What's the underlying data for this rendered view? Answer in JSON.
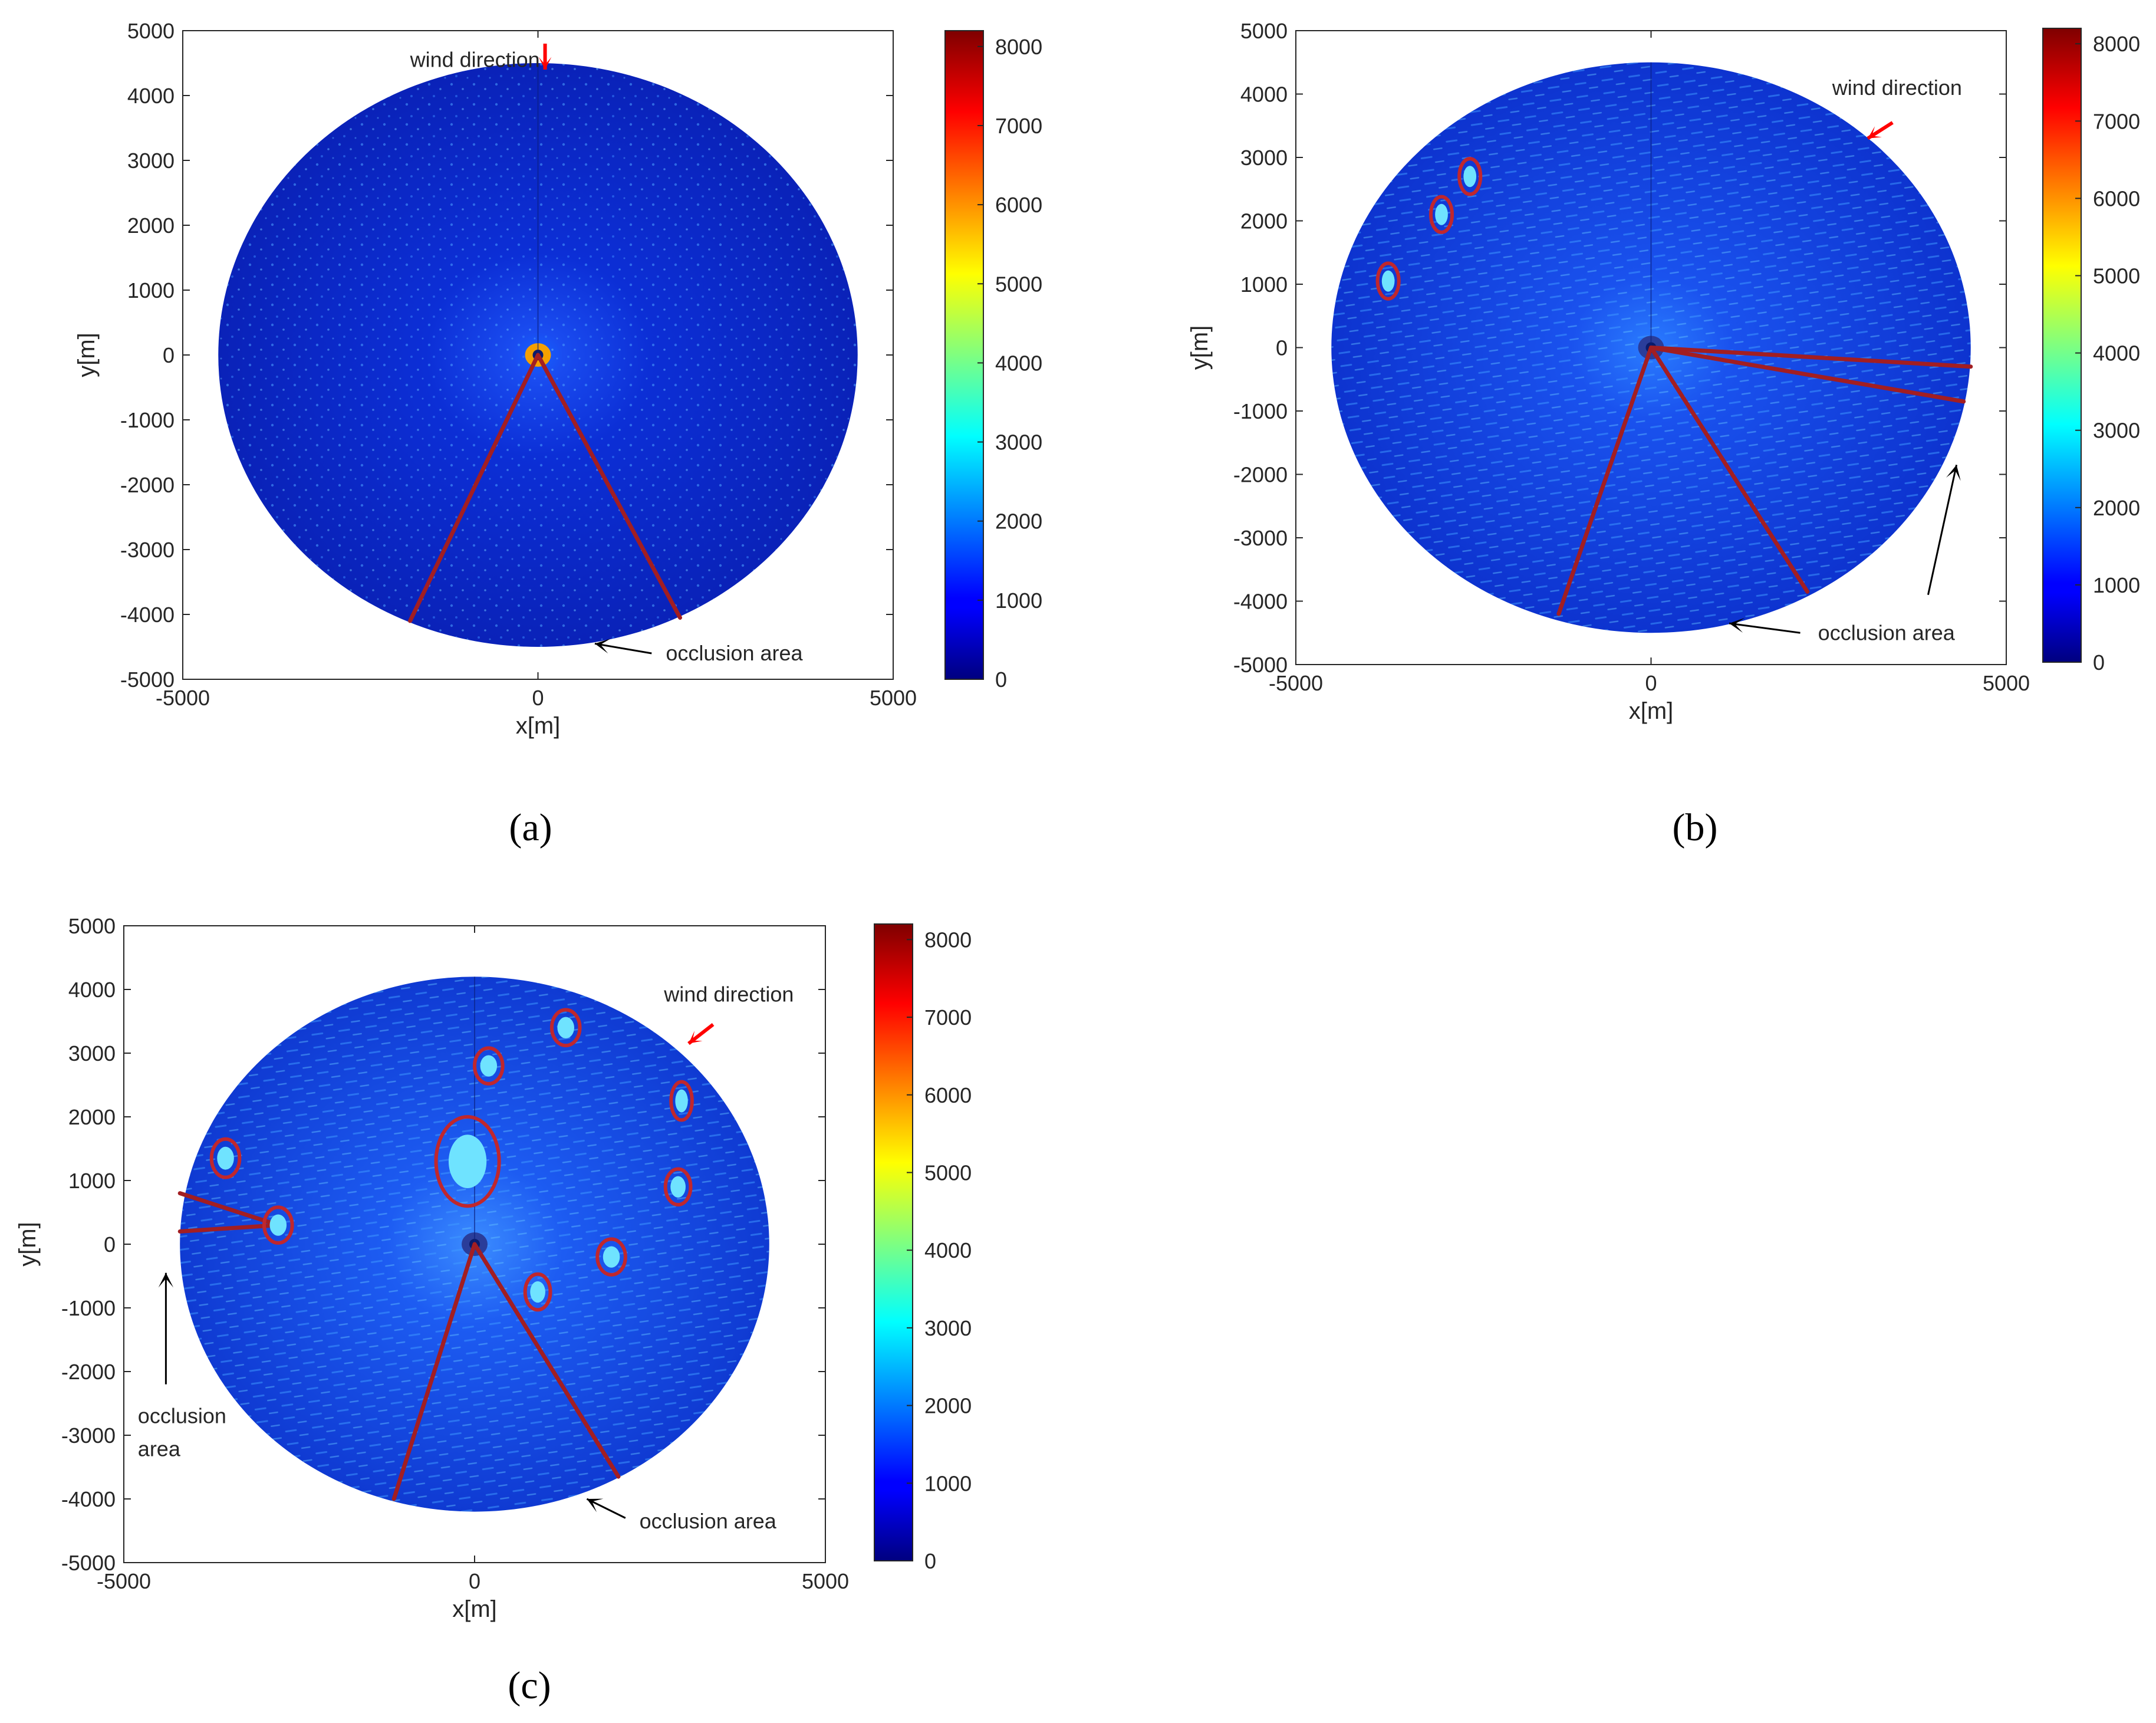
{
  "chart_data": [
    {
      "panel_label": "(a)",
      "type": "heatmap",
      "title": "",
      "xlabel": "x[m]",
      "ylabel": "y[m]",
      "xlim": [
        -5000,
        5000
      ],
      "ylim": [
        -5000,
        5000
      ],
      "xticks": [
        "-5000",
        "0",
        "5000"
      ],
      "yticks": [
        "5000",
        "4000",
        "3000",
        "2000",
        "1000",
        "0",
        "-1000",
        "-2000",
        "-3000",
        "-4000",
        "-5000"
      ],
      "radar_radius_m": 4500,
      "colorbar": {
        "min": 0,
        "max": 8200,
        "colormap": "jet",
        "ticks": [
          "8000",
          "7000",
          "6000",
          "5000",
          "4000",
          "3000",
          "2000",
          "1000",
          "0"
        ]
      },
      "occlusion_sectors": [
        {
          "from": [
            0,
            0
          ],
          "to": [
            [
              -1800,
              -4100
            ],
            [
              2000,
              -4050
            ]
          ]
        }
      ],
      "ellipses": [],
      "annotations": [
        {
          "text": "wind direction",
          "x": -1800,
          "y": 4550,
          "arrow": {
            "color": "#ff0000",
            "from": [
              100,
              4800
            ],
            "to": [
              100,
              4400
            ]
          }
        },
        {
          "text": "occlusion area",
          "x": 1800,
          "y": -4600,
          "arrow": {
            "color": "#000000",
            "from": [
              1600,
              -4600
            ],
            "to": [
              800,
              -4450
            ]
          }
        }
      ]
    },
    {
      "panel_label": "(b)",
      "type": "heatmap",
      "title": "",
      "xlabel": "x[m]",
      "ylabel": "y[m]",
      "xlim": [
        -5000,
        5000
      ],
      "ylim": [
        -5000,
        5000
      ],
      "xticks": [
        "-5000",
        "0",
        "5000"
      ],
      "yticks": [
        "5000",
        "4000",
        "3000",
        "2000",
        "1000",
        "0",
        "-1000",
        "-2000",
        "-3000",
        "-4000",
        "-5000"
      ],
      "radar_radius_m": 4500,
      "colorbar": {
        "min": 0,
        "max": 8200,
        "colormap": "jet",
        "ticks": [
          "8000",
          "7000",
          "6000",
          "5000",
          "4000",
          "3000",
          "2000",
          "1000",
          "0"
        ]
      },
      "occlusion_sectors": [
        {
          "from": [
            0,
            0
          ],
          "to": [
            [
              -1300,
              -4200
            ],
            [
              2200,
              -3850
            ]
          ]
        },
        {
          "from": [
            0,
            0
          ],
          "to": [
            [
              4500,
              -300
            ],
            [
              4400,
              -850
            ]
          ]
        }
      ],
      "ellipses": [
        {
          "cx": -2550,
          "cy": 2700,
          "rx": 150,
          "ry": 280
        },
        {
          "cx": -2950,
          "cy": 2100,
          "rx": 150,
          "ry": 280
        },
        {
          "cx": -3700,
          "cy": 1050,
          "rx": 150,
          "ry": 280
        }
      ],
      "annotations": [
        {
          "text": "wind direction",
          "x": 2550,
          "y": 4100,
          "arrow": {
            "color": "#ff0000",
            "from": [
              3400,
              3550
            ],
            "to": [
              3050,
              3300
            ]
          }
        },
        {
          "text": "occlusion area",
          "x": 2350,
          "y": -4500,
          "arrow": {
            "color": "#000000",
            "from": [
              2100,
              -4500
            ],
            "to": [
              1100,
              -4350
            ]
          }
        },
        {
          "text": "",
          "x": 0,
          "y": 0,
          "arrow": {
            "color": "#000000",
            "from": [
              3900,
              -3900
            ],
            "to": [
              4300,
              -1850
            ]
          }
        }
      ]
    },
    {
      "panel_label": "(c)",
      "type": "heatmap",
      "title": "",
      "xlabel": "x[m]",
      "ylabel": "y[m]",
      "xlim": [
        -5000,
        5000
      ],
      "ylim": [
        -5000,
        5000
      ],
      "xticks": [
        "-5000",
        "0",
        "5000"
      ],
      "yticks": [
        "5000",
        "4000",
        "3000",
        "2000",
        "1000",
        "0",
        "-1000",
        "-2000",
        "-3000",
        "-4000",
        "-5000"
      ],
      "radar_radius_m": 4200,
      "colorbar": {
        "min": 0,
        "max": 8200,
        "colormap": "jet",
        "ticks": [
          "8000",
          "7000",
          "6000",
          "5000",
          "4000",
          "3000",
          "2000",
          "1000",
          "0"
        ]
      },
      "occlusion_sectors": [
        {
          "from": [
            0,
            0
          ],
          "to": [
            [
              -1150,
              -4000
            ],
            [
              2050,
              -3650
            ]
          ]
        },
        {
          "from": [
            -2800,
            300
          ],
          "to": [
            [
              -4200,
              800
            ],
            [
              -4200,
              200
            ]
          ]
        }
      ],
      "ellipses": [
        {
          "cx": 1300,
          "cy": 3400,
          "rx": 200,
          "ry": 280
        },
        {
          "cx": 200,
          "cy": 2800,
          "rx": 200,
          "ry": 280
        },
        {
          "cx": 2950,
          "cy": 2250,
          "rx": 150,
          "ry": 300
        },
        {
          "cx": -3550,
          "cy": 1350,
          "rx": 200,
          "ry": 300
        },
        {
          "cx": -100,
          "cy": 1300,
          "rx": 450,
          "ry": 700
        },
        {
          "cx": 2900,
          "cy": 900,
          "rx": 180,
          "ry": 280
        },
        {
          "cx": -2800,
          "cy": 300,
          "rx": 200,
          "ry": 280
        },
        {
          "cx": 1950,
          "cy": -200,
          "rx": 200,
          "ry": 280
        },
        {
          "cx": 900,
          "cy": -750,
          "rx": 180,
          "ry": 280
        }
      ],
      "annotations": [
        {
          "text": "wind direction",
          "x": 2700,
          "y": 3920,
          "arrow": {
            "color": "#ff0000",
            "from": [
              3400,
              3450
            ],
            "to": [
              3050,
              3150
            ]
          }
        },
        {
          "text": "occlusion area",
          "x": 2350,
          "y": -4350,
          "arrow": {
            "color": "#000000",
            "from": [
              2150,
              -4300
            ],
            "to": [
              1600,
              -4000
            ]
          }
        },
        {
          "text": "occlusion area",
          "x": -4800,
          "y": -2700,
          "arrow": {
            "color": "#000000",
            "from": [
              -4400,
              -2200
            ],
            "to": [
              -4400,
              -450
            ]
          }
        }
      ]
    }
  ],
  "colors": {
    "sector_line": "#a21e22",
    "ellipse": "#c0272d",
    "wind_arrow": "#ff0000",
    "text": "#262626"
  }
}
